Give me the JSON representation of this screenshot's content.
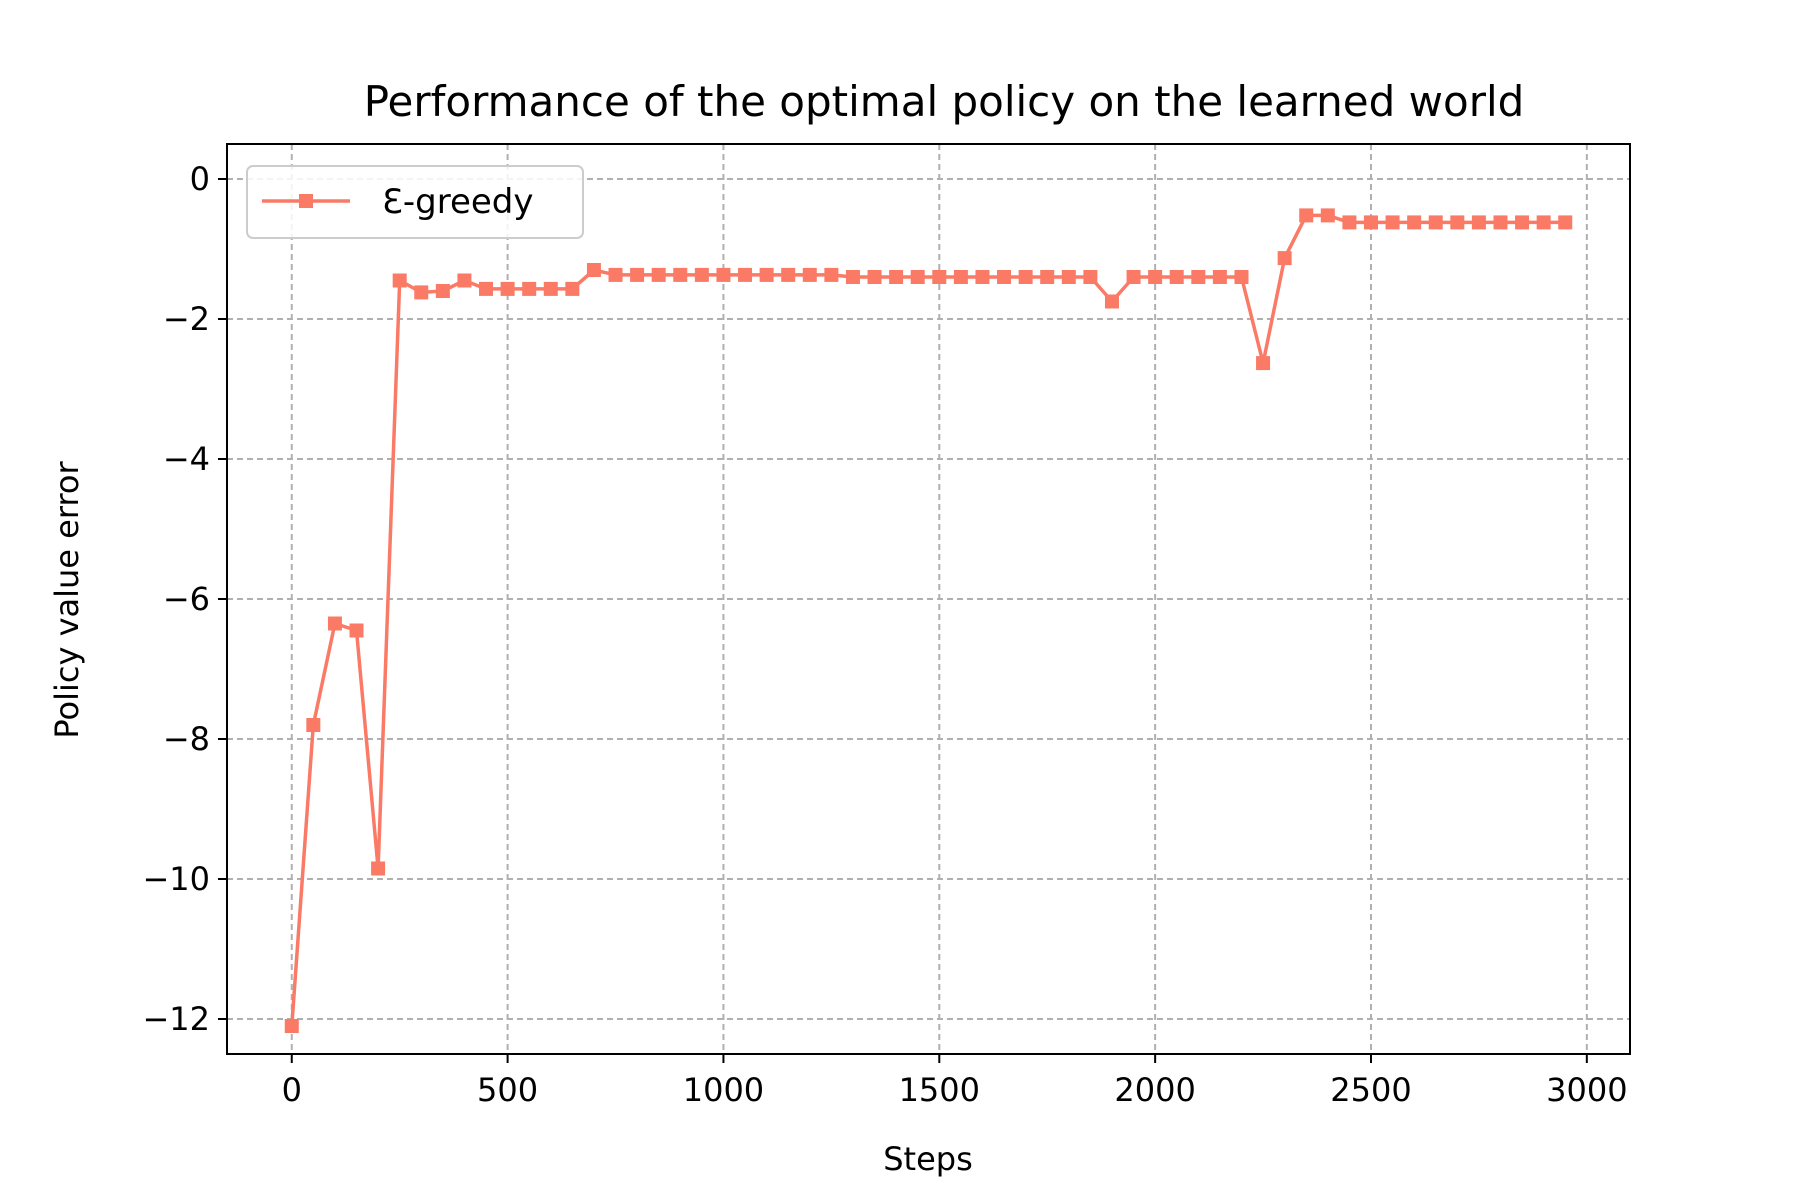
{
  "chart_data": {
    "type": "line",
    "title": "Performance of the optimal policy on the learned world",
    "xlabel": "Steps",
    "ylabel": "Policy value error",
    "xlim": [
      -150,
      3100
    ],
    "ylim": [
      -12.5,
      0.5
    ],
    "xticks": [
      0,
      500,
      1000,
      1500,
      2000,
      2500,
      3000
    ],
    "yticks": [
      0,
      -2,
      -4,
      -6,
      -8,
      -10,
      -12
    ],
    "xtick_labels": [
      "0",
      "500",
      "1000",
      "1500",
      "2000",
      "2500",
      "3000"
    ],
    "ytick_labels": [
      "0",
      "−2",
      "−4",
      "−6",
      "−8",
      "−10",
      "−12"
    ],
    "grid": true,
    "legend_position": "upper-left",
    "series": [
      {
        "name": "Ɛ-greedy",
        "color": "#fa7a66",
        "marker": "square",
        "x": [
          0,
          50,
          100,
          150,
          200,
          250,
          300,
          350,
          400,
          450,
          500,
          550,
          600,
          650,
          700,
          750,
          800,
          850,
          900,
          950,
          1000,
          1050,
          1100,
          1150,
          1200,
          1250,
          1300,
          1350,
          1400,
          1450,
          1500,
          1550,
          1600,
          1650,
          1700,
          1750,
          1800,
          1850,
          1900,
          1950,
          2000,
          2050,
          2100,
          2150,
          2200,
          2250,
          2300,
          2350,
          2400,
          2450,
          2500,
          2550,
          2600,
          2650,
          2700,
          2750,
          2800,
          2850,
          2900,
          2950
        ],
        "y": [
          -12.1,
          -7.8,
          -6.35,
          -6.45,
          -9.85,
          -1.45,
          -1.62,
          -1.6,
          -1.45,
          -1.57,
          -1.57,
          -1.57,
          -1.57,
          -1.57,
          -1.3,
          -1.37,
          -1.37,
          -1.37,
          -1.37,
          -1.37,
          -1.37,
          -1.37,
          -1.37,
          -1.37,
          -1.37,
          -1.37,
          -1.4,
          -1.4,
          -1.4,
          -1.4,
          -1.4,
          -1.4,
          -1.4,
          -1.4,
          -1.4,
          -1.4,
          -1.4,
          -1.4,
          -1.75,
          -1.4,
          -1.4,
          -1.4,
          -1.4,
          -1.4,
          -1.4,
          -2.63,
          -1.13,
          -0.52,
          -0.52,
          -0.62,
          -0.62,
          -0.62,
          -0.62,
          -0.62,
          -0.62,
          -0.62,
          -0.62,
          -0.62,
          -0.62,
          -0.62
        ]
      }
    ]
  }
}
